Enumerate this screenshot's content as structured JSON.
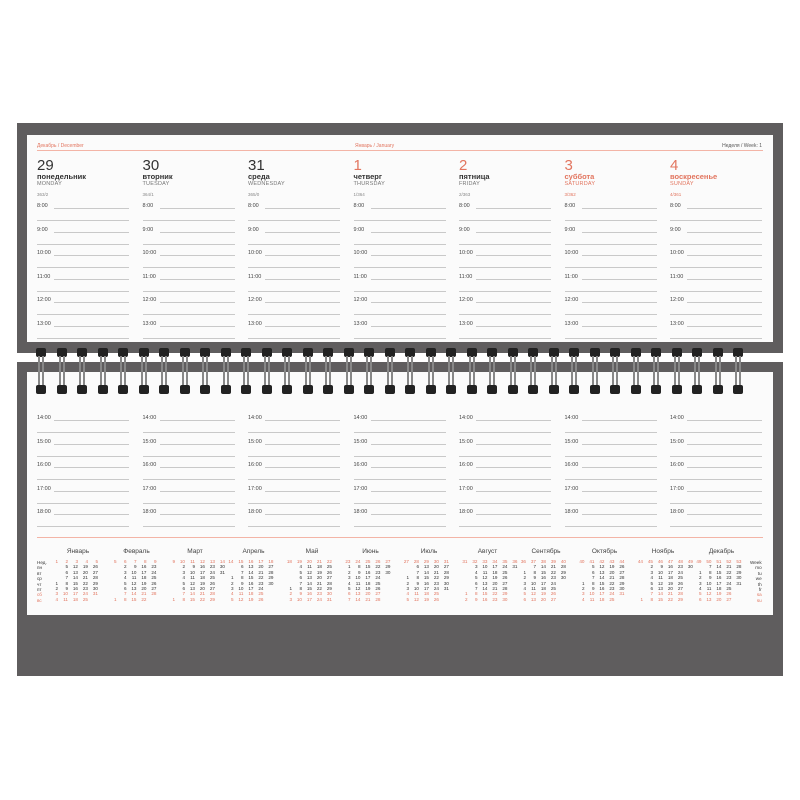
{
  "header": {
    "month_left": "Декабрь / December",
    "month_right": "Январь / January",
    "week": "Неделя / Week: 1"
  },
  "days": [
    {
      "num": "29",
      "ru": "понедельник",
      "en": "MONDAY",
      "meta": "363/2",
      "weekend": false
    },
    {
      "num": "30",
      "ru": "вторник",
      "en": "TUESDAY",
      "meta": "364/1",
      "weekend": false
    },
    {
      "num": "31",
      "ru": "среда",
      "en": "WEDNESDAY",
      "meta": "365/0",
      "weekend": false
    },
    {
      "num": "1",
      "ru": "четверг",
      "en": "THURSDAY",
      "meta": "1/364",
      "weekend": false,
      "num_red": true
    },
    {
      "num": "2",
      "ru": "пятница",
      "en": "FRIDAY",
      "meta": "2/363",
      "weekend": false,
      "num_red": true
    },
    {
      "num": "3",
      "ru": "суббота",
      "en": "SATURDAY",
      "meta": "3/362",
      "weekend": true
    },
    {
      "num": "4",
      "ru": "воскресенье",
      "en": "SUNDAY",
      "meta": "4/361",
      "weekend": true
    }
  ],
  "hours_top": [
    "8:00",
    "9:00",
    "10:00",
    "11:00",
    "12:00",
    "13:00"
  ],
  "hours_bottom": [
    "14:00",
    "15:00",
    "16:00",
    "17:00",
    "18:00"
  ],
  "year_calendar": {
    "week_label_ru": "Нед.",
    "weekdays_ru": [
      "пн",
      "вт",
      "ср",
      "чт",
      "пт",
      "сб",
      "вс"
    ],
    "week_label_en": "Week",
    "weekdays_en": [
      "mo",
      "tu",
      "we",
      "th",
      "fr",
      "sa",
      "su"
    ],
    "accent": "#e2755f",
    "months": [
      {
        "name": "Январь",
        "weeks": [
          "1",
          "2",
          "3",
          "4",
          "5"
        ],
        "start_weekday": 4,
        "days": 31
      },
      {
        "name": "Февраль",
        "weeks": [
          "5",
          "6",
          "7",
          "8",
          "9"
        ],
        "start_weekday": 7,
        "days": 28
      },
      {
        "name": "Март",
        "weeks": [
          "9",
          "10",
          "11",
          "12",
          "13",
          "14"
        ],
        "start_weekday": 7,
        "days": 31
      },
      {
        "name": "Апрель",
        "weeks": [
          "14",
          "15",
          "16",
          "17",
          "18"
        ],
        "start_weekday": 3,
        "days": 30
      },
      {
        "name": "Май",
        "weeks": [
          "18",
          "19",
          "20",
          "21",
          "22"
        ],
        "start_weekday": 5,
        "days": 31
      },
      {
        "name": "Июнь",
        "weeks": [
          "23",
          "24",
          "25",
          "26",
          "27"
        ],
        "start_weekday": 1,
        "days": 30
      },
      {
        "name": "Июль",
        "weeks": [
          "27",
          "28",
          "29",
          "30",
          "31"
        ],
        "start_weekday": 3,
        "days": 31
      },
      {
        "name": "Август",
        "weeks": [
          "31",
          "32",
          "33",
          "34",
          "35",
          "36"
        ],
        "start_weekday": 6,
        "days": 31
      },
      {
        "name": "Сентябрь",
        "weeks": [
          "36",
          "37",
          "38",
          "39",
          "40"
        ],
        "start_weekday": 2,
        "days": 30
      },
      {
        "name": "Октябрь",
        "weeks": [
          "40",
          "41",
          "42",
          "43",
          "44"
        ],
        "start_weekday": 4,
        "days": 31
      },
      {
        "name": "Ноябрь",
        "weeks": [
          "44",
          "45",
          "46",
          "47",
          "48",
          "49"
        ],
        "start_weekday": 7,
        "days": 30
      },
      {
        "name": "Декабрь",
        "weeks": [
          "49",
          "50",
          "51",
          "52",
          "53"
        ],
        "start_weekday": 2,
        "days": 31
      }
    ]
  }
}
